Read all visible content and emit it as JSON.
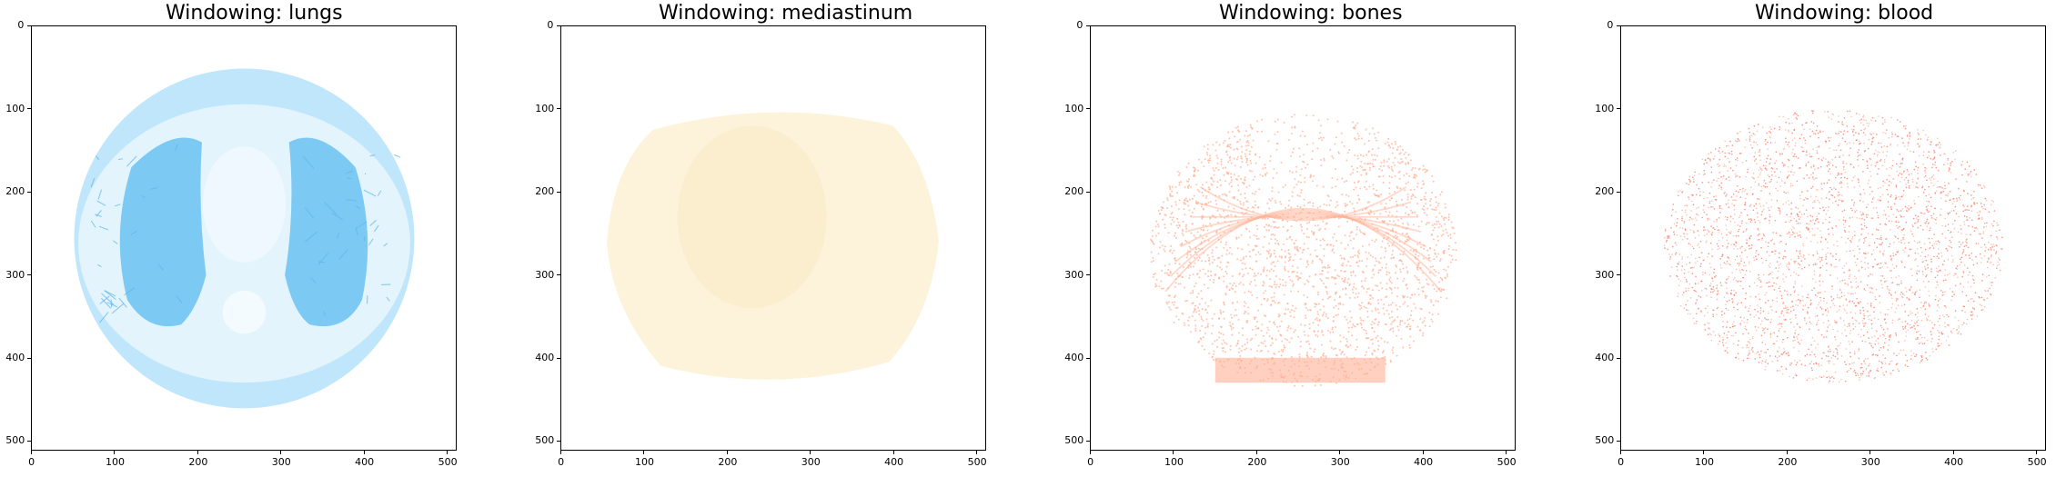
{
  "panels": [
    {
      "title": "Windowing: lungs",
      "color": "#bfe6fb",
      "dark": "#7cc9f3",
      "kind": "lungs"
    },
    {
      "title": "Windowing: mediastinum",
      "color": "#fdf3da",
      "dark": "#f8ebc6",
      "kind": "mediastinum"
    },
    {
      "title": "Windowing: bones",
      "color": "#ffc8b4",
      "dark": "#ffb195",
      "kind": "bones"
    },
    {
      "title": "Windowing: blood",
      "color": "#fbb5a3",
      "dark": "#f47f6a",
      "kind": "blood"
    }
  ],
  "axis": {
    "xticks": [
      "0",
      "100",
      "200",
      "300",
      "400",
      "500"
    ],
    "yticks": [
      "0",
      "100",
      "200",
      "300",
      "400",
      "500"
    ],
    "range": [
      0,
      511
    ]
  }
}
